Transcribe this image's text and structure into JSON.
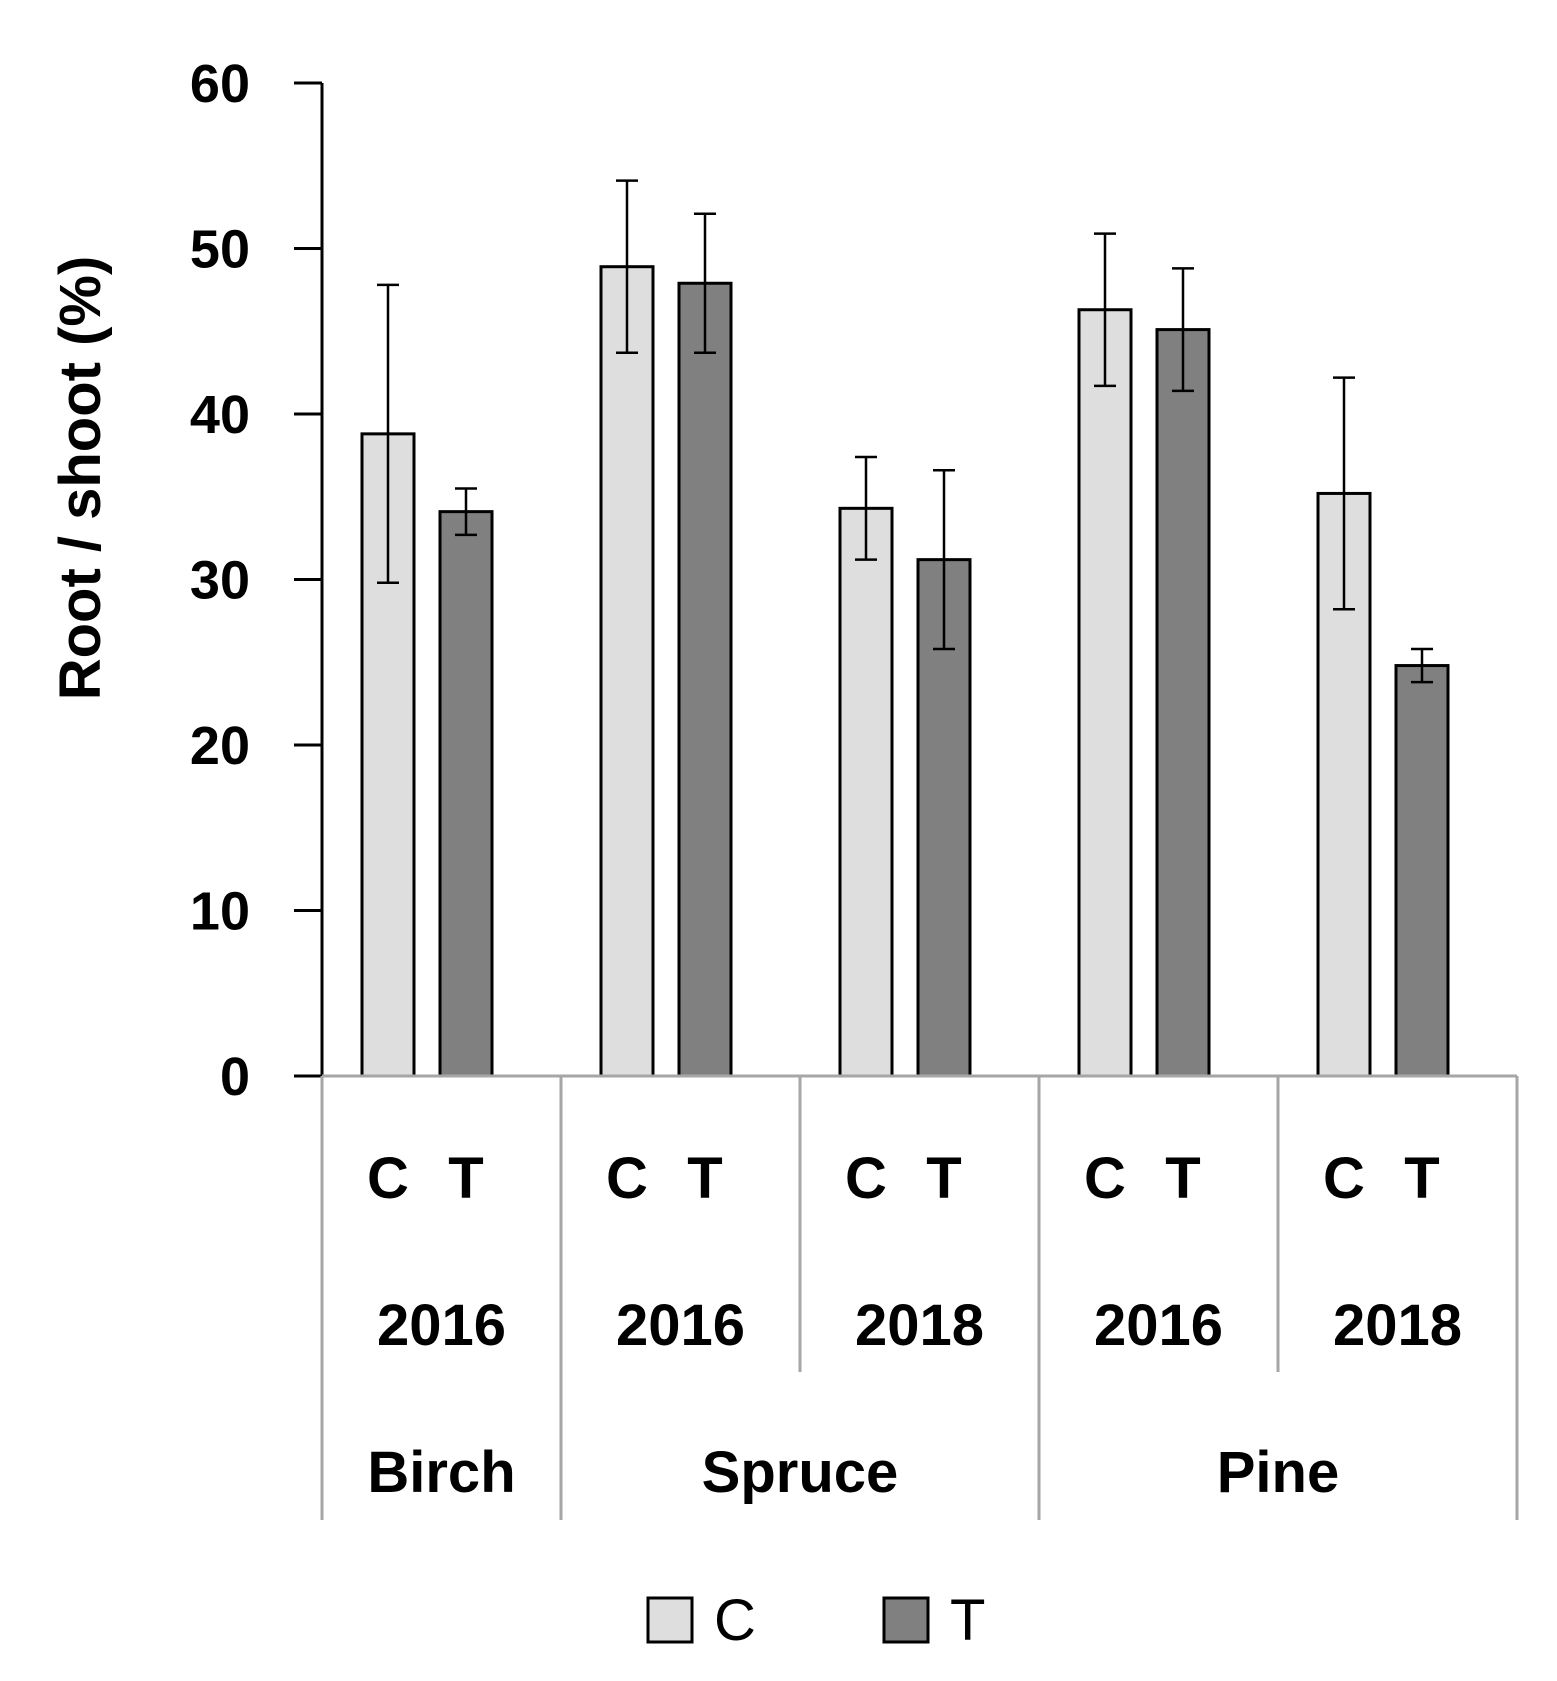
{
  "chart_data": {
    "type": "bar",
    "ylabel": "Root / shoot (%)",
    "ylim": [
      0,
      60
    ],
    "yticks": [
      0,
      10,
      20,
      30,
      40,
      50,
      60
    ],
    "groups": [
      {
        "species": "Birch",
        "year": "2016",
        "C": 38.8,
        "C_err": 9.0,
        "T": 34.1,
        "T_err": 1.4
      },
      {
        "species": "Spruce",
        "year": "2016",
        "C": 48.9,
        "C_err": 5.2,
        "T": 47.9,
        "T_err": 4.2
      },
      {
        "species": "Spruce",
        "year": "2018",
        "C": 34.3,
        "C_err": 3.1,
        "T": 31.2,
        "T_err": 5.4
      },
      {
        "species": "Pine",
        "year": "2016",
        "C": 46.3,
        "C_err": 4.6,
        "T": 45.1,
        "T_err": 3.7
      },
      {
        "species": "Pine",
        "year": "2018",
        "C": 35.2,
        "C_err": 7.0,
        "T": 24.8,
        "T_err": 1.0
      }
    ],
    "species_labels": [
      "Birch",
      "Spruce",
      "Pine"
    ],
    "series": [
      {
        "name": "C",
        "color": "#dedede"
      },
      {
        "name": "T",
        "color": "#808080"
      }
    ],
    "legend": "bottom",
    "grid": false
  }
}
